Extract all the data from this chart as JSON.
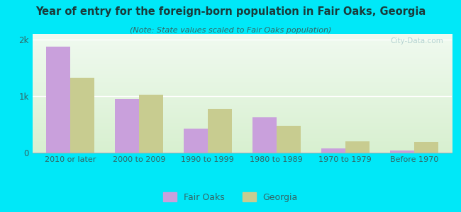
{
  "title": "Year of entry for the foreign-born population in Fair Oaks, Georgia",
  "subtitle": "(Note: State values scaled to Fair Oaks population)",
  "categories": [
    "2010 or later",
    "2000 to 2009",
    "1990 to 1999",
    "1980 to 1989",
    "1970 to 1979",
    "Before 1970"
  ],
  "fair_oaks_values": [
    1870,
    950,
    430,
    620,
    80,
    35
  ],
  "georgia_values": [
    1320,
    1020,
    780,
    470,
    195,
    185
  ],
  "fair_oaks_color": "#c9a0dc",
  "georgia_color": "#c8cc90",
  "background_outer": "#00e8f8",
  "background_inner_top": "#f0faf0",
  "background_inner_bottom": "#d8f0d0",
  "ylim": [
    0,
    2100
  ],
  "yticks": [
    0,
    1000,
    2000
  ],
  "ytick_labels": [
    "0",
    "1k",
    "2k"
  ],
  "watermark": "City-Data.com",
  "legend_fair_oaks": "Fair Oaks",
  "legend_georgia": "Georgia",
  "bar_width": 0.35,
  "title_color": "#1a3a3a",
  "subtitle_color": "#336666",
  "tick_color": "#336666",
  "watermark_color": "#aacccc"
}
